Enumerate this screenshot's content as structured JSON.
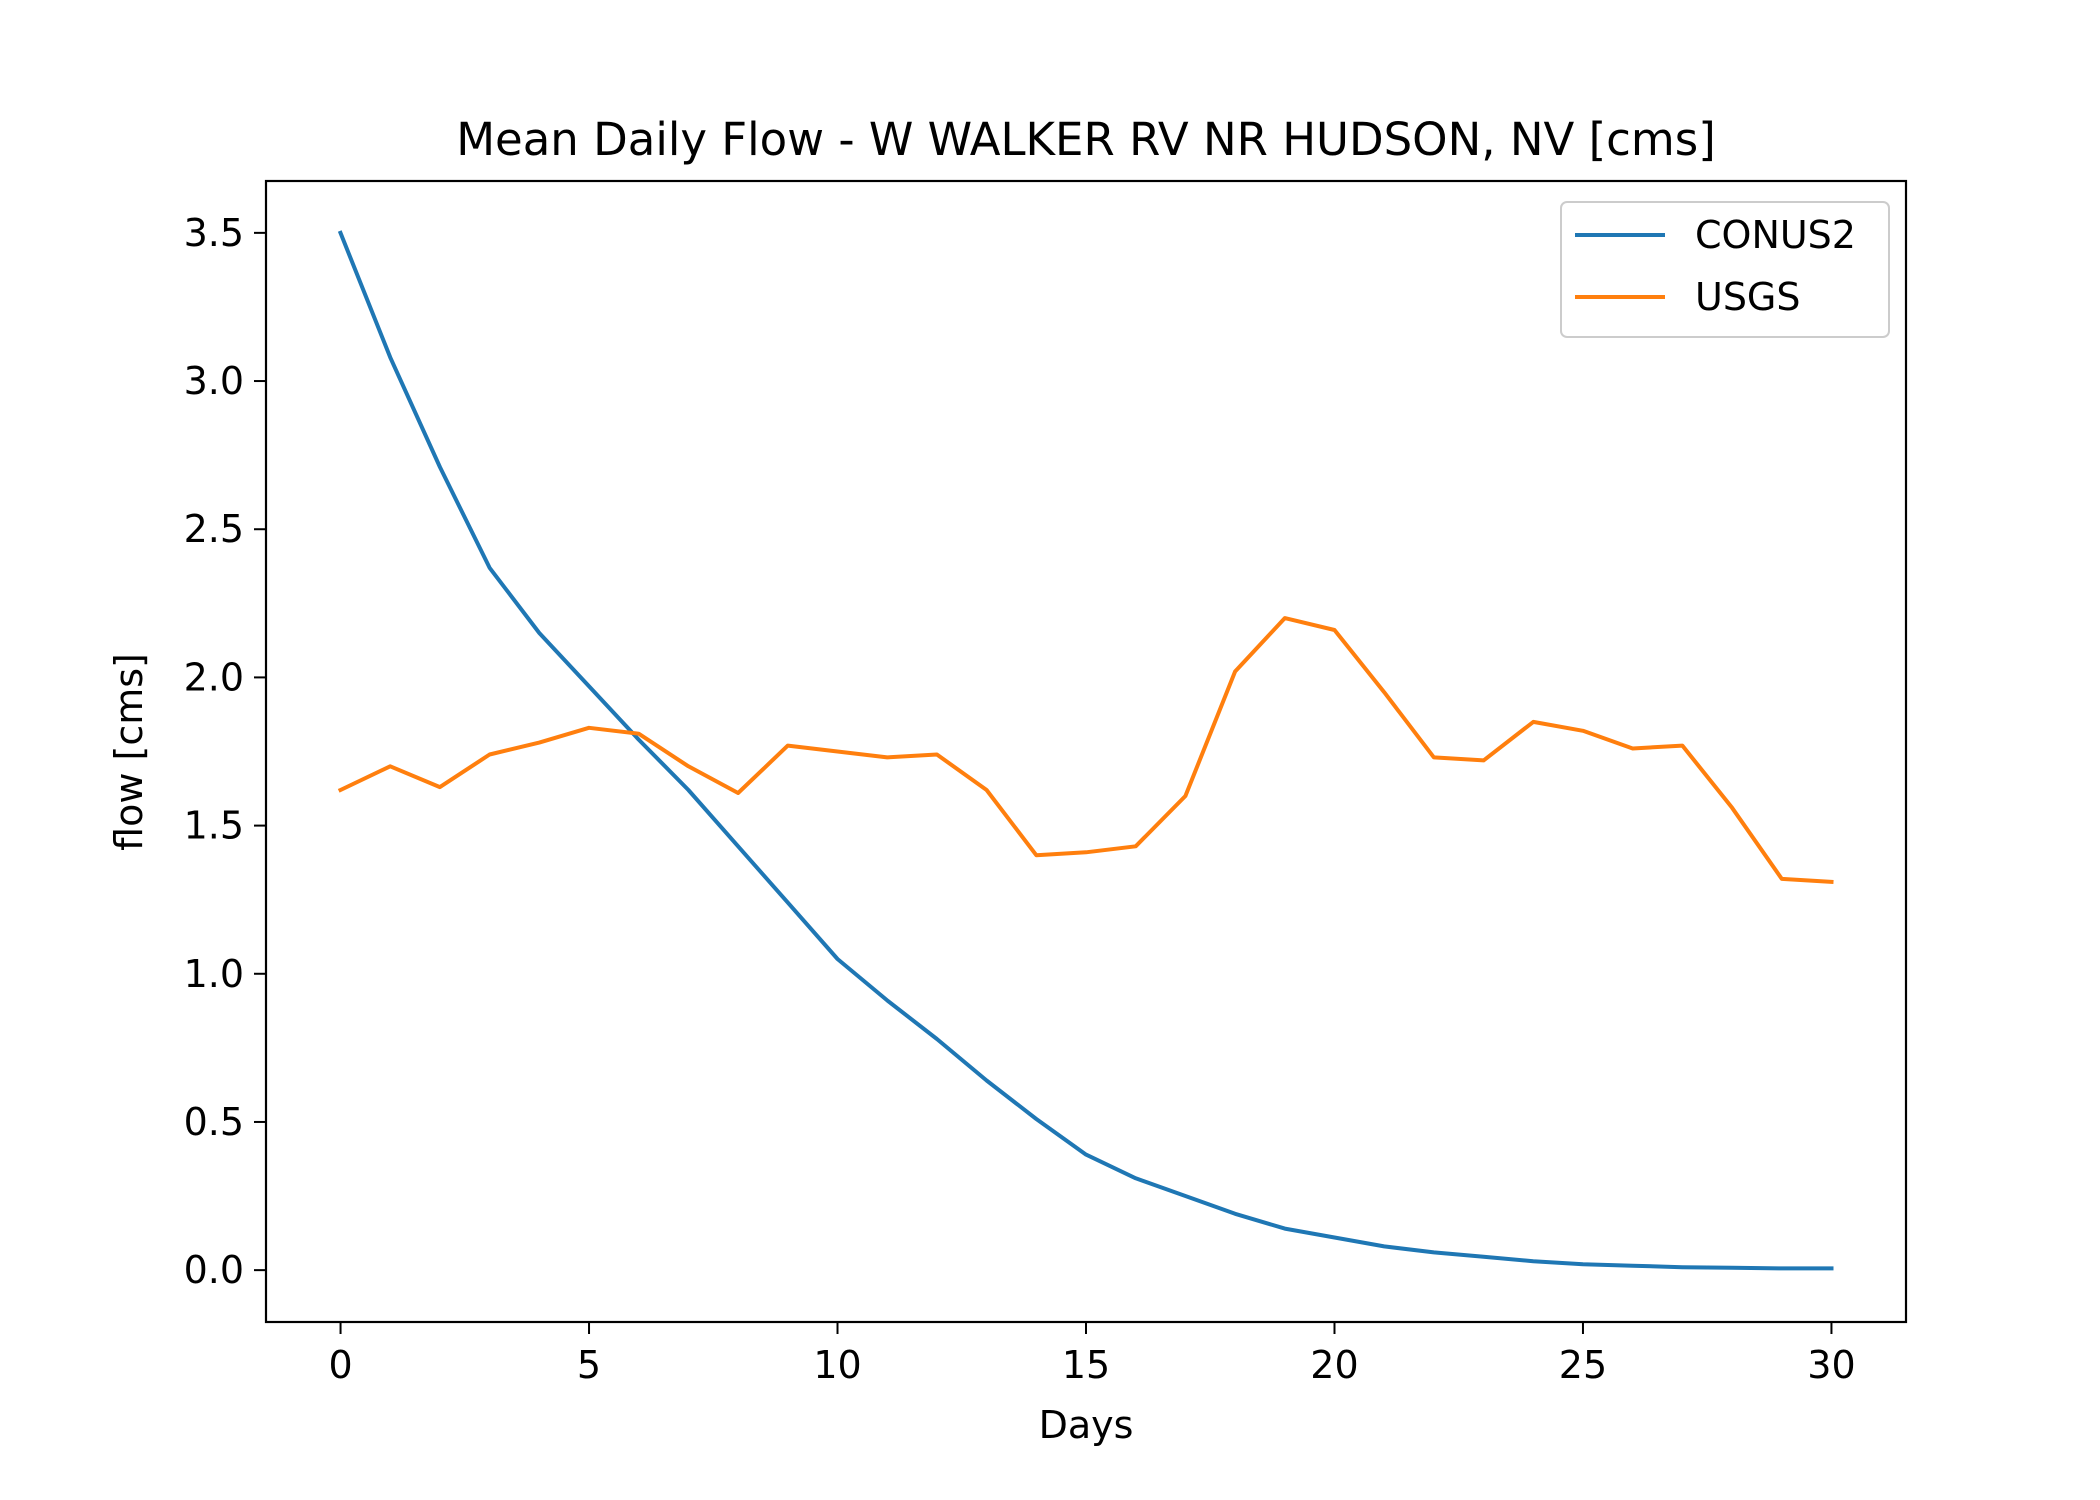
{
  "chart_data": {
    "type": "line",
    "title": "Mean Daily Flow - W WALKER RV NR HUDSON, NV [cms]",
    "xlabel": "Days",
    "ylabel": "flow [cms]",
    "xlim": [
      -1.5,
      31.5
    ],
    "ylim": [
      -0.175,
      3.675
    ],
    "xticks": [
      0,
      5,
      10,
      15,
      20,
      25,
      30
    ],
    "yticks": [
      0.0,
      0.5,
      1.0,
      1.5,
      2.0,
      2.5,
      3.0,
      3.5
    ],
    "xtick_labels": [
      "0",
      "5",
      "10",
      "15",
      "20",
      "25",
      "30"
    ],
    "ytick_labels": [
      "0.0",
      "0.5",
      "1.0",
      "1.5",
      "2.0",
      "2.5",
      "3.0",
      "3.5"
    ],
    "grid": false,
    "legend": "top-right",
    "x": [
      0,
      1,
      2,
      3,
      4,
      5,
      6,
      7,
      8,
      9,
      10,
      11,
      12,
      13,
      14,
      15,
      16,
      17,
      18,
      19,
      20,
      21,
      22,
      23,
      24,
      25,
      26,
      27,
      28,
      29,
      30
    ],
    "series": [
      {
        "name": "CONUS2",
        "color": "#1f77b4",
        "values": [
          3.5,
          3.08,
          2.71,
          2.37,
          2.15,
          1.97,
          1.79,
          1.62,
          1.43,
          1.24,
          1.05,
          0.91,
          0.78,
          0.64,
          0.51,
          0.39,
          0.31,
          0.25,
          0.19,
          0.14,
          0.11,
          0.08,
          0.06,
          0.045,
          0.03,
          0.02,
          0.015,
          0.01,
          0.008,
          0.006,
          0.006
        ]
      },
      {
        "name": "USGS",
        "color": "#ff7f0e",
        "values": [
          1.62,
          1.7,
          1.63,
          1.74,
          1.78,
          1.83,
          1.81,
          1.7,
          1.61,
          1.77,
          1.75,
          1.73,
          1.74,
          1.62,
          1.4,
          1.41,
          1.43,
          1.6,
          2.02,
          2.2,
          2.16,
          1.95,
          1.73,
          1.72,
          1.85,
          1.82,
          1.76,
          1.77,
          1.56,
          1.32,
          1.31
        ]
      }
    ]
  }
}
